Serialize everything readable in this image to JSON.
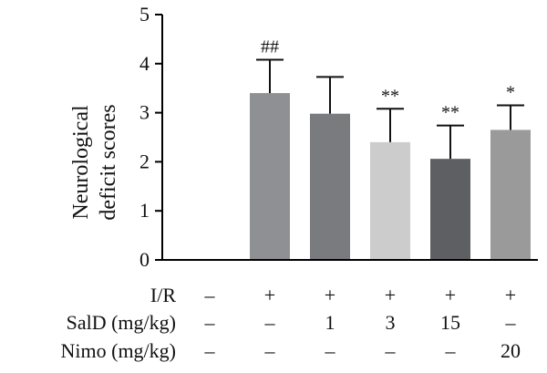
{
  "chart_data": {
    "type": "bar",
    "ylabel_lines": [
      "Neurological",
      "deficit scores"
    ],
    "ylim": [
      0,
      5
    ],
    "yticks": [
      0,
      1,
      2,
      3,
      4,
      5
    ],
    "grid": false,
    "legend": "none",
    "bars": [
      {
        "value": 0,
        "error": 0,
        "significance": "",
        "color": "#ffffff"
      },
      {
        "value": 3.4,
        "error": 0.68,
        "significance": "##",
        "color": "#8f9094"
      },
      {
        "value": 2.98,
        "error": 0.75,
        "significance": "",
        "color": "#7a7b7f"
      },
      {
        "value": 2.4,
        "error": 0.68,
        "significance": "**",
        "color": "#cccccc"
      },
      {
        "value": 2.06,
        "error": 0.68,
        "significance": "**",
        "color": "#5e5f63"
      },
      {
        "value": 2.65,
        "error": 0.5,
        "significance": "*",
        "color": "#9a9a9a"
      }
    ],
    "conditions": [
      {
        "label": "I/R",
        "values": [
          "–",
          "+",
          "+",
          "+",
          "+",
          "+"
        ]
      },
      {
        "label": "SalD (mg/kg)",
        "values": [
          "–",
          "–",
          "1",
          "3",
          "15",
          "–"
        ]
      },
      {
        "label": "Nimo (mg/kg)",
        "values": [
          "–",
          "–",
          "–",
          "–",
          "–",
          "20"
        ]
      }
    ]
  }
}
